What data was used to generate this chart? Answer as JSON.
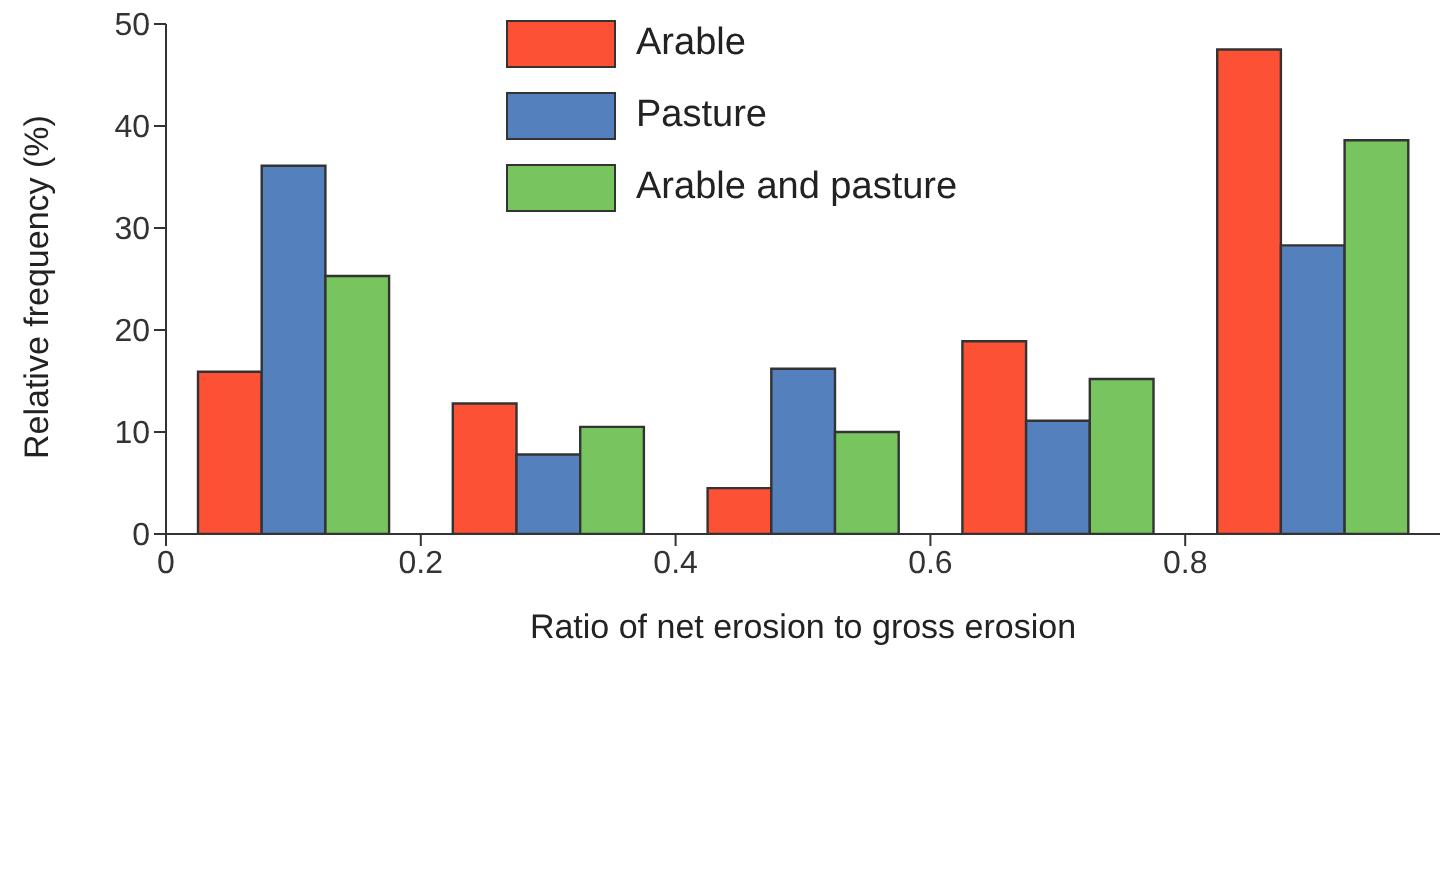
{
  "chart_data": {
    "type": "bar",
    "xlabel": "Ratio of net erosion to gross erosion",
    "ylabel": "Relative frequency (%)",
    "x": [
      0.1,
      0.3,
      0.5,
      0.7,
      0.9
    ],
    "series": [
      {
        "name": "Arable",
        "color": "#fd5136",
        "values": [
          15.9,
          12.8,
          4.5,
          18.9,
          47.5
        ]
      },
      {
        "name": "Pasture",
        "color": "#5580be",
        "values": [
          36.1,
          7.8,
          16.2,
          11.1,
          28.3
        ]
      },
      {
        "name": "Arable and pasture",
        "color": "#78c45e",
        "values": [
          25.3,
          10.5,
          10.0,
          15.2,
          38.6
        ]
      }
    ],
    "xlim": [
      0,
      1
    ],
    "xticks": [
      0,
      0.2,
      0.4,
      0.6,
      0.8
    ],
    "ylim": [
      0,
      50
    ],
    "yticks": [
      0,
      10,
      20,
      30,
      40,
      50
    ],
    "grid": false,
    "legend": "top"
  }
}
